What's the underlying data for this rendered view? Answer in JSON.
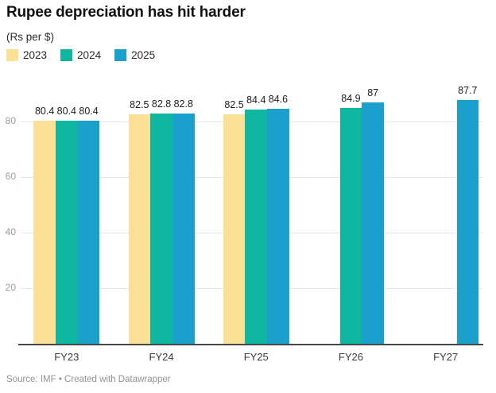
{
  "header": {
    "title": "Rupee depreciation has hit harder",
    "subtitle": "(Rs per $)"
  },
  "footer": {
    "text": "Source: IMF • Created with Datawrapper"
  },
  "chart_data": {
    "type": "bar",
    "title": "Rupee depreciation has hit harder",
    "subtitle": "(Rs per $)",
    "categories": [
      "FY23",
      "FY24",
      "FY25",
      "FY26",
      "FY27"
    ],
    "series": [
      {
        "name": "2023",
        "color": "#fbe096",
        "values": [
          80.4,
          82.5,
          82.5,
          null,
          null
        ]
      },
      {
        "name": "2024",
        "color": "#10b7a0",
        "values": [
          80.4,
          82.8,
          84.4,
          84.9,
          null
        ]
      },
      {
        "name": "2025",
        "color": "#1b9fcd",
        "values": [
          80.4,
          82.8,
          84.6,
          87,
          87.7
        ]
      }
    ],
    "value_labels_shown": true,
    "yticks": [
      20,
      40,
      60,
      80
    ],
    "ylim": [
      0,
      92
    ],
    "xlabel": "",
    "ylabel": "",
    "grid": "horizontal",
    "legend_position": "top-left",
    "source": "Source: IMF • Created with Datawrapper",
    "colors": {
      "gridline": "#e7e7e7",
      "axis_line": "#474747",
      "ytick_text": "#9c9c9c",
      "value_label_text": "#1c1c1c",
      "category_text": "#3a3a3a"
    }
  }
}
